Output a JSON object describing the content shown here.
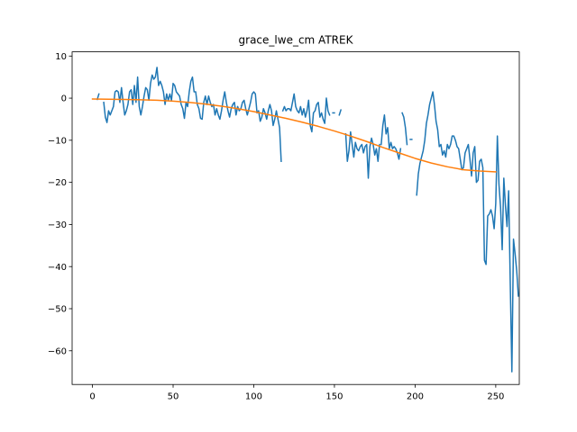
{
  "chart_data": {
    "type": "line",
    "title": "grace_lwe_cm ATREK",
    "xlabel": "",
    "ylabel": "",
    "xlim": [
      -12.6,
      264.6
    ],
    "ylim": [
      -68.0,
      11.0
    ],
    "xticks": [
      0,
      50,
      100,
      150,
      200,
      250
    ],
    "yticks": [
      10,
      0,
      -10,
      -20,
      -30,
      -40,
      -50,
      -60
    ],
    "grid": false,
    "legend": "none",
    "series": [
      {
        "color": "#1f77b4",
        "segments": [
          [
            [
              3,
              -0.3
            ],
            [
              4,
              1.0
            ]
          ],
          [
            [
              7,
              -1.0
            ],
            [
              8,
              -4.5
            ],
            [
              9,
              -5.8
            ],
            [
              10,
              -3.0
            ],
            [
              11,
              -4.0
            ],
            [
              12,
              -3.0
            ],
            [
              13,
              -2.0
            ],
            [
              14,
              1.5
            ],
            [
              15,
              1.8
            ],
            [
              16,
              1.5
            ],
            [
              17,
              -1.0
            ],
            [
              18,
              2.5
            ],
            [
              19,
              -1.0
            ],
            [
              20,
              -4.0
            ],
            [
              21,
              -3.0
            ],
            [
              22,
              -1.5
            ],
            [
              23,
              1.5
            ],
            [
              24,
              2.0
            ],
            [
              25,
              -1.5
            ],
            [
              26,
              3.0
            ],
            [
              27,
              -1.0
            ],
            [
              28,
              5.0
            ],
            [
              29,
              -2.0
            ],
            [
              30,
              -4.0
            ],
            [
              31,
              -2.0
            ],
            [
              32,
              0.5
            ],
            [
              33,
              2.5
            ],
            [
              34,
              2.0
            ],
            [
              35,
              -0.5
            ],
            [
              36,
              3.5
            ],
            [
              37,
              5.5
            ],
            [
              38,
              4.5
            ],
            [
              39,
              5.0
            ],
            [
              40,
              7.3
            ],
            [
              41,
              3.0
            ],
            [
              42,
              4.0
            ],
            [
              43,
              3.0
            ],
            [
              44,
              1.5
            ],
            [
              45,
              -1.5
            ],
            [
              46,
              1.0
            ],
            [
              47,
              -0.5
            ],
            [
              48,
              1.0
            ],
            [
              49,
              -0.5
            ],
            [
              50,
              3.5
            ],
            [
              51,
              3.0
            ],
            [
              52,
              1.5
            ],
            [
              53,
              1.0
            ],
            [
              54,
              0.5
            ],
            [
              55,
              -1.5
            ],
            [
              56,
              -2.5
            ],
            [
              57,
              -4.8
            ],
            [
              58,
              -1.0
            ],
            [
              59,
              -2.0
            ],
            [
              60,
              1.5
            ],
            [
              61,
              4.0
            ],
            [
              62,
              5.0
            ],
            [
              63,
              1.5
            ],
            [
              64,
              1.5
            ],
            [
              65,
              -1.5
            ],
            [
              66,
              -2.5
            ],
            [
              67,
              -4.8
            ],
            [
              68,
              -5.0
            ],
            [
              69,
              -1.0
            ],
            [
              70,
              0.5
            ],
            [
              71,
              -1.5
            ],
            [
              72,
              0.5
            ],
            [
              73,
              -1.0
            ],
            [
              74,
              -2.0
            ],
            [
              75,
              -1.5
            ],
            [
              76,
              -4.0
            ],
            [
              77,
              -2.5
            ],
            [
              78,
              -4.0
            ],
            [
              79,
              -5.0
            ],
            [
              80,
              -3.0
            ],
            [
              81,
              -0.5
            ],
            [
              82,
              1.5
            ],
            [
              83,
              -1.0
            ],
            [
              84,
              -3.0
            ],
            [
              85,
              -4.5
            ],
            [
              86,
              -2.5
            ],
            [
              87,
              -1.5
            ],
            [
              88,
              -1.0
            ],
            [
              89,
              -4.0
            ],
            [
              90,
              -2.0
            ],
            [
              91,
              -3.0
            ],
            [
              92,
              -2.5
            ],
            [
              93,
              -1.0
            ],
            [
              94,
              -0.5
            ],
            [
              95,
              -2.5
            ],
            [
              96,
              -4.0
            ],
            [
              97,
              -2.5
            ],
            [
              98,
              -1.0
            ],
            [
              99,
              1.0
            ],
            [
              100,
              1.5
            ],
            [
              101,
              1.0
            ],
            [
              102,
              -3.5
            ],
            [
              103,
              -3.0
            ],
            [
              104,
              -5.5
            ],
            [
              105,
              -4.5
            ],
            [
              106,
              -2.5
            ],
            [
              107,
              -3.5
            ],
            [
              108,
              -5.0
            ],
            [
              109,
              -3.0
            ],
            [
              110,
              -1.5
            ],
            [
              111,
              -3.0
            ],
            [
              112,
              -6.5
            ],
            [
              113,
              -5.0
            ],
            [
              114,
              -3.0
            ],
            [
              115,
              -5.0
            ],
            [
              116,
              -7.0
            ],
            [
              117,
              -15.0
            ]
          ],
          [
            [
              118,
              -3.0
            ],
            [
              119,
              -2.0
            ],
            [
              120,
              -3.0
            ],
            [
              121,
              -2.5
            ],
            [
              122,
              -2.5
            ],
            [
              123,
              -3.0
            ],
            [
              124,
              -1.0
            ],
            [
              125,
              1.0
            ],
            [
              126,
              -2.0
            ],
            [
              127,
              -3.0
            ],
            [
              128,
              -3.5
            ],
            [
              129,
              -2.0
            ],
            [
              130,
              -4.0
            ],
            [
              131,
              -2.5
            ],
            [
              132,
              -4.5
            ],
            [
              133,
              -3.0
            ],
            [
              134,
              -0.5
            ],
            [
              135,
              -6.5
            ],
            [
              136,
              -8.0
            ],
            [
              137,
              -3.5
            ],
            [
              138,
              -3.0
            ],
            [
              139,
              -1.5
            ],
            [
              140,
              -1.0
            ],
            [
              141,
              -4.5
            ],
            [
              142,
              -3.5
            ],
            [
              143,
              -5.0
            ],
            [
              144,
              -6.0
            ],
            [
              145,
              0.0
            ],
            [
              146,
              -3.0
            ],
            [
              147,
              -4.0
            ]
          ],
          [
            [
              149,
              -3.5
            ],
            [
              150,
              -3.5
            ]
          ],
          [
            [
              153,
              -4.0
            ],
            [
              154,
              -2.8
            ]
          ],
          [
            [
              157,
              -8.5
            ],
            [
              158,
              -15.0
            ],
            [
              159,
              -12.5
            ],
            [
              160,
              -8.0
            ],
            [
              161,
              -11.0
            ],
            [
              162,
              -14.0
            ],
            [
              163,
              -10.5
            ],
            [
              164,
              -12.0
            ],
            [
              165,
              -12.5
            ],
            [
              166,
              -11.5
            ],
            [
              167,
              -11.0
            ],
            [
              168,
              -13.0
            ],
            [
              169,
              -11.5
            ],
            [
              170,
              -11.0
            ],
            [
              171,
              -19.0
            ],
            [
              172,
              -11.5
            ],
            [
              173,
              -9.5
            ],
            [
              174,
              -11.0
            ],
            [
              175,
              -13.5
            ],
            [
              176,
              -12.0
            ],
            [
              177,
              -15.0
            ],
            [
              178,
              -11.0
            ]
          ],
          [
            [
              179,
              -11.0
            ],
            [
              180,
              -6.5
            ],
            [
              181,
              -4.0
            ],
            [
              182,
              -8.5
            ],
            [
              183,
              -7.0
            ],
            [
              184,
              -12.0
            ],
            [
              185,
              -10.5
            ],
            [
              186,
              -12.0
            ],
            [
              187,
              -11.5
            ],
            [
              188,
              -12.0
            ],
            [
              189,
              -13.0
            ],
            [
              190,
              -14.5
            ],
            [
              191,
              -12.0
            ]
          ],
          [
            [
              192,
              -3.5
            ],
            [
              193,
              -4.5
            ],
            [
              194,
              -7.0
            ],
            [
              195,
              -11.0
            ]
          ],
          [
            [
              197,
              -9.8
            ],
            [
              198,
              -9.8
            ]
          ],
          [
            [
              201,
              -23.0
            ],
            [
              202,
              -18.0
            ],
            [
              203,
              -15.5
            ],
            [
              204,
              -14.0
            ],
            [
              205,
              -12.5
            ],
            [
              206,
              -10.0
            ],
            [
              207,
              -6.0
            ],
            [
              208,
              -4.0
            ],
            [
              209,
              -1.5
            ],
            [
              210,
              0.0
            ],
            [
              211,
              1.5
            ],
            [
              212,
              -1.5
            ],
            [
              213,
              -5.5
            ],
            [
              214,
              -7.5
            ],
            [
              215,
              -11.5
            ],
            [
              216,
              -11.0
            ],
            [
              217,
              -13.5
            ],
            [
              218,
              -12.5
            ],
            [
              219,
              -14.0
            ],
            [
              220,
              -11.0
            ],
            [
              221,
              -12.0
            ],
            [
              222,
              -11.0
            ],
            [
              223,
              -9.0
            ],
            [
              224,
              -9.0
            ],
            [
              225,
              -10.0
            ],
            [
              226,
              -11.5
            ],
            [
              227,
              -12.0
            ],
            [
              228,
              -14.5
            ],
            [
              229,
              -17.0
            ],
            [
              230,
              -16.5
            ],
            [
              231,
              -13.0
            ],
            [
              232,
              -12.0
            ],
            [
              233,
              -11.0
            ],
            [
              234,
              -14.5
            ],
            [
              235,
              -18.5
            ],
            [
              236,
              -13.0
            ],
            [
              237,
              -11.5
            ],
            [
              238,
              -20.0
            ],
            [
              239,
              -19.5
            ],
            [
              240,
              -15.0
            ],
            [
              241,
              -14.5
            ],
            [
              242,
              -16.5
            ],
            [
              243,
              -38.5
            ],
            [
              244,
              -39.5
            ],
            [
              245,
              -28.0
            ],
            [
              246,
              -27.5
            ],
            [
              247,
              -26.5
            ],
            [
              248,
              -28.0
            ],
            [
              249,
              -31.0
            ],
            [
              250,
              -25.0
            ],
            [
              251,
              -9.0
            ],
            [
              252,
              -20.5
            ],
            [
              253,
              -26.0
            ],
            [
              254,
              -36.0
            ],
            [
              255,
              -19.0
            ],
            [
              256,
              -25.5
            ],
            [
              257,
              -30.5
            ],
            [
              258,
              -22.0
            ],
            [
              259,
              -44.0
            ],
            [
              260,
              -65.0
            ],
            [
              261,
              -33.5
            ],
            [
              262,
              -37.0
            ],
            [
              263,
              -41.0
            ],
            [
              264,
              -47.0
            ]
          ]
        ]
      },
      {
        "color": "#ff7f0e",
        "points": [
          [
            0,
            -0.2
          ],
          [
            10,
            -0.25
          ],
          [
            20,
            -0.3
          ],
          [
            30,
            -0.4
          ],
          [
            40,
            -0.5
          ],
          [
            50,
            -0.7
          ],
          [
            60,
            -1.0
          ],
          [
            70,
            -1.4
          ],
          [
            80,
            -1.9
          ],
          [
            90,
            -2.5
          ],
          [
            100,
            -3.2
          ],
          [
            110,
            -4.0
          ],
          [
            120,
            -4.8
          ],
          [
            130,
            -5.7
          ],
          [
            140,
            -6.7
          ],
          [
            150,
            -7.8
          ],
          [
            160,
            -9.0
          ],
          [
            170,
            -10.3
          ],
          [
            180,
            -11.7
          ],
          [
            190,
            -13.0
          ],
          [
            200,
            -14.3
          ],
          [
            210,
            -15.4
          ],
          [
            220,
            -16.3
          ],
          [
            230,
            -17.0
          ],
          [
            240,
            -17.3
          ],
          [
            250,
            -17.5
          ]
        ]
      }
    ]
  }
}
